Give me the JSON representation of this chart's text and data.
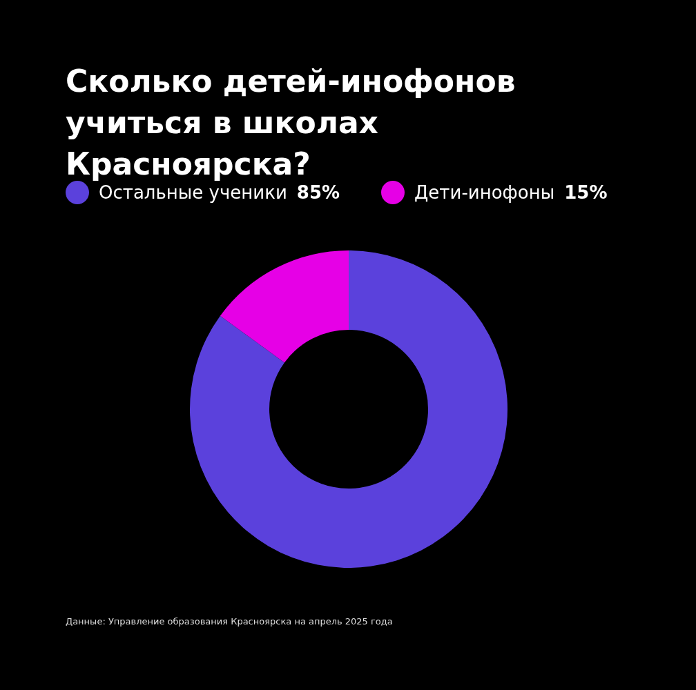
{
  "chart_data": {
    "type": "donut",
    "title": "Сколько детей-инофонов учиться в школах Красноярска?",
    "categories": [
      "Остальные ученики",
      "Дети-инофоны"
    ],
    "values": [
      85,
      15
    ],
    "colors": [
      "#5b41dc",
      "#e600e6"
    ],
    "value_labels": [
      "85%",
      "15%"
    ],
    "legend": "top left",
    "annotations": [
      "Данные: Управление образования Красноярска на апрель 2025 года"
    ]
  }
}
